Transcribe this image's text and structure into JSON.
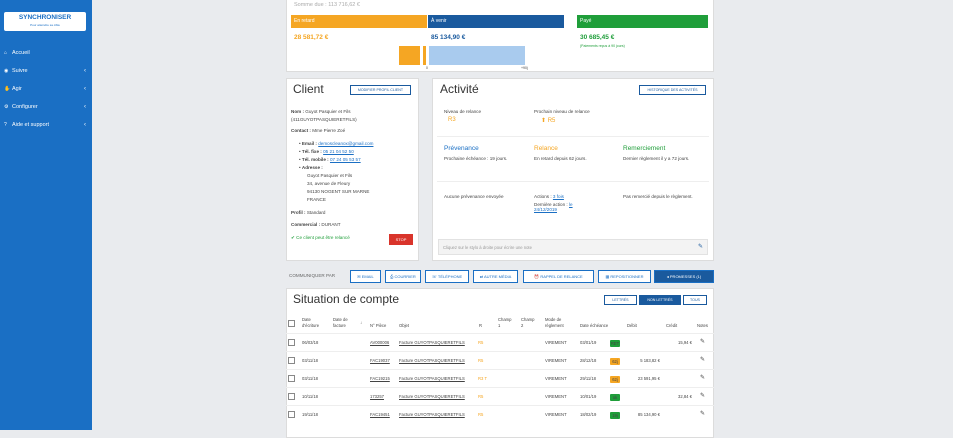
{
  "app": {
    "logo": "SYNCHRONISER",
    "logo_sub": "Pour atteindre sa cible"
  },
  "sidebar": {
    "items": [
      {
        "label": "Accueil",
        "icon": "home-icon"
      },
      {
        "label": "Suivre",
        "icon": "eye-icon"
      },
      {
        "label": "Agir",
        "icon": "hand-icon"
      },
      {
        "label": "Configurer",
        "icon": "gear-icon"
      },
      {
        "label": "Aide et support",
        "icon": "help-icon"
      }
    ]
  },
  "summary": {
    "total": "Somme due : 113 716,62 €",
    "late_label": "En retard",
    "late_value": "28 581,72 €",
    "tocome_label": "À venir",
    "tocome_value": "85 134,90 €",
    "paid_label": "Payé",
    "paid_value": "30 685,45 €",
    "paid_note": "(Paiements reçus à 90 jours)",
    "axis_zero": "0",
    "axis_right": "+90j",
    "colors": {
      "late": "#f5a623",
      "tocome": "#1a5a9e",
      "paid": "#1f9e3a"
    }
  },
  "client": {
    "title": "Client",
    "edit_btn": "MODIFIER PROFIL CLIENT",
    "name_label": "Nom :",
    "name_value": "Guyot Pasquier et Fils",
    "code": "(411GUYOTPASQUIERETFILS)",
    "contact_label": "Contact :",
    "contact_value": "Mme Pierre Zoé",
    "email_label": "Email :",
    "email_value": "demoscleanox@gmail.com",
    "fixed_label": "Tél. fixe :",
    "fixed_value": "05 21 04 52 50",
    "mobile_label": "Tél. mobile :",
    "mobile_value": "07 24 05 53 57",
    "address_label": "Adresse :",
    "address_lines": [
      "Guyot Pasquier et Fils",
      "34, avenue de Fleury",
      "94130 NOGENT SUR MARNE",
      "FRANCE"
    ],
    "profile_label": "Profil :",
    "profile_value": "Standard",
    "commercial_label": "Commercial :",
    "commercial_value": "DURANT",
    "ok_text": "Ce client peut être relancé",
    "stop_btn": "STOP"
  },
  "activity": {
    "title": "Activité",
    "history_btn": "HISTORIQUE DES ACTIVITÉS",
    "level_label": "Niveau de relance",
    "level_value": "R3",
    "next_label": "Prochain niveau de relance",
    "next_value": "R5",
    "prevenance_title": "Prévenance",
    "prevenance_text": "Prochaine échéance : 19 jours.",
    "relance_title": "Relance",
    "relance_text": "En retard depuis 62 jours.",
    "remerciement_title": "Remerciement",
    "remerciement_text": "Dernier règlement il y a 72 jours.",
    "no_prev": "Aucune prévenance envoyée",
    "actions_label": "Actions :",
    "actions_link": "3 fois",
    "last_action_label": "Dernière action :",
    "last_action_link": "le 24/12/2019",
    "not_thanked": "Pas remercié depuis le règlement.",
    "note_placeholder": "Cliquez sur le stylo à droite pour écrire une note"
  },
  "communicate": {
    "label": "COMMUNIQUER PAR",
    "buttons": [
      "EMAIL",
      "COURRIER",
      "TÉLÉPHONE",
      "AUTRE MÉDIA",
      "RAPPEL DE RELANCE",
      "REPOSITIONNER",
      "PROMESSES (1)"
    ]
  },
  "account": {
    "title": "Situation de compte",
    "btn_letters": "LETTRÉS",
    "btn_nonletters": "NON LETTRÉS",
    "btn_all": "TOUS",
    "headers": [
      "Date d'écriture",
      "Date de facture",
      "N° Pièce",
      "Objet",
      "R",
      "Champ 1",
      "Champ 2",
      "Mode de règlement",
      "Date échéance",
      "Débit",
      "Crédit",
      "Notes"
    ],
    "rows": [
      {
        "date": "06/03/18",
        "piece": "AV000006",
        "objet": "Facture GUYOTPASQUIERETFILS",
        "r": "R5",
        "mode": "VIREMENT",
        "echeance": "03/01/19",
        "badge": "RET",
        "badge_color": "#1f9e3a",
        "debit": "",
        "credit": "15,94 €"
      },
      {
        "date": "03/11/18",
        "piece": "FAC19037",
        "objet": "Facture GUYOTPASQUIERETFILS",
        "r": "R5",
        "mode": "VIREMENT",
        "echeance": "28/12/18",
        "badge": "62j",
        "badge_color": "#f5a623",
        "debit": "5 183,82 €",
        "credit": ""
      },
      {
        "date": "03/11/18",
        "piece": "FAC19215",
        "objet": "Facture GUYOTPASQUIERETFILS",
        "r": "R3 T",
        "mode": "VIREMENT",
        "echeance": "29/11/18",
        "badge": "62j",
        "badge_color": "#f5a623",
        "debit": "23 591,95 €",
        "credit": ""
      },
      {
        "date": "10/11/18",
        "piece": "173257",
        "objet": "Facture GUYOTPASQUIERETFILS",
        "r": "R5",
        "mode": "VIREMENT",
        "echeance": "10/01/19",
        "badge": "ok",
        "badge_color": "#1f9e3a",
        "debit": "",
        "credit": "32,84 €"
      },
      {
        "date": "19/11/18",
        "piece": "FAC19451",
        "objet": "Facture GUYOTPASQUIERETFILS",
        "r": "R5",
        "mode": "VIREMENT",
        "echeance": "18/02/19",
        "badge": "19j",
        "badge_color": "#1f9e3a",
        "debit": "85 134,90 €",
        "credit": ""
      }
    ]
  }
}
